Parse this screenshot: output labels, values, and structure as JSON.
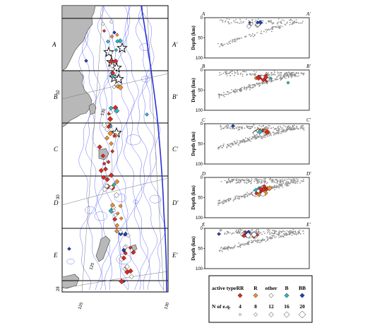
{
  "map": {
    "section_labels": [
      "A",
      "A'",
      "B",
      "B'",
      "C",
      "C'",
      "D",
      "D'",
      "E",
      "E'"
    ],
    "lat_labels": [
      "32",
      "30",
      "28"
    ],
    "lon_labels": [
      "125",
      "130",
      "130",
      "125"
    ]
  },
  "legend": {
    "title": "active type",
    "types": [
      "RR",
      "R",
      "other",
      "B",
      "BB"
    ],
    "colors": {
      "RR": "#e0281e",
      "R": "#f0902a",
      "other": "#ffffff",
      "B": "#2bb5c9",
      "BB": "#1f3fbf"
    },
    "size_title": "N of e.q.",
    "sizes": [
      "4",
      "8",
      "12",
      "16",
      "20"
    ]
  },
  "chart_data": [
    {
      "type": "scatter",
      "section": "A",
      "labels": [
        "A",
        "A'"
      ],
      "ylabel": "Depth (km)",
      "ylim": [
        100,
        0
      ],
      "yticks": [
        "0",
        "50",
        "100"
      ]
    },
    {
      "type": "scatter",
      "section": "B",
      "labels": [
        "B",
        "B'"
      ],
      "ylabel": "Depth (km)",
      "ylim": [
        100,
        0
      ],
      "yticks": [
        "0",
        "50",
        "100"
      ]
    },
    {
      "type": "scatter",
      "section": "C",
      "labels": [
        "C",
        "C'"
      ],
      "ylabel": "Depth (km)",
      "ylim": [
        100,
        0
      ],
      "yticks": [
        "0",
        "50",
        "100"
      ]
    },
    {
      "type": "scatter",
      "section": "D",
      "labels": [
        "D",
        "D'"
      ],
      "ylabel": "Depth (km)",
      "ylim": [
        100,
        0
      ],
      "yticks": [
        "0",
        "50",
        "100"
      ]
    },
    {
      "type": "scatter",
      "section": "E",
      "labels": [
        "E",
        "E'"
      ],
      "ylabel": "Depth (km)",
      "ylim": [
        100,
        0
      ],
      "yticks": [
        "0",
        "50",
        "100"
      ]
    }
  ]
}
